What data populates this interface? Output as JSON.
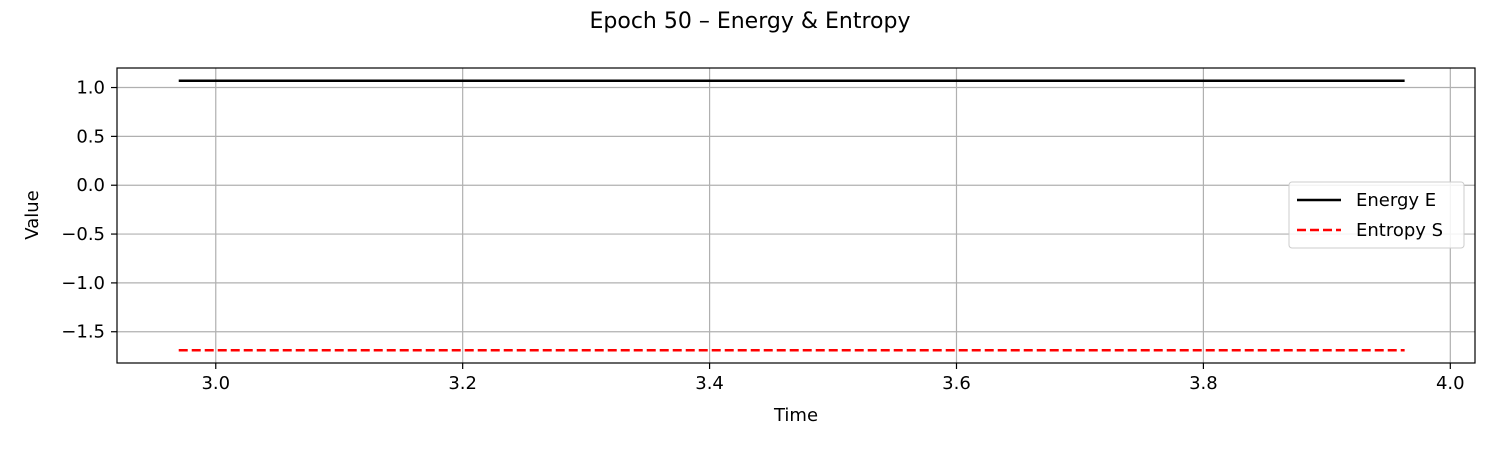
{
  "chart_data": {
    "type": "line",
    "title": "Epoch 50 – Energy & Entropy",
    "xlabel": "Time",
    "ylabel": "Value",
    "xlim": [
      2.92,
      4.02
    ],
    "ylim": [
      -1.82,
      1.2
    ],
    "xticks": [
      3.0,
      3.2,
      3.4,
      3.6,
      3.8,
      4.0
    ],
    "xtick_labels": [
      "3.0",
      "3.2",
      "3.4",
      "3.6",
      "3.8",
      "4.0"
    ],
    "yticks": [
      1.0,
      0.5,
      0.0,
      -0.5,
      -1.0,
      -1.5
    ],
    "ytick_labels": [
      "1.0",
      "0.5",
      "0.0",
      "−0.5",
      "−1.0",
      "−1.5"
    ],
    "grid": true,
    "legend_position": "center-right",
    "series": [
      {
        "name": "Energy E",
        "x": [
          2.97,
          3.963
        ],
        "values": [
          1.07,
          1.07
        ],
        "color": "#000000",
        "style": "solid"
      },
      {
        "name": "Entropy S",
        "x": [
          2.97,
          3.963
        ],
        "values": [
          -1.69,
          -1.69
        ],
        "color": "#ff0000",
        "style": "dashed"
      }
    ]
  }
}
